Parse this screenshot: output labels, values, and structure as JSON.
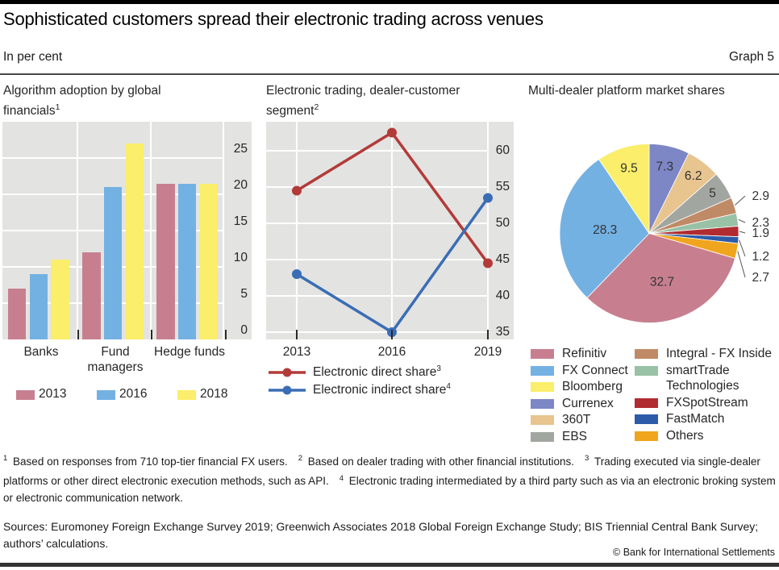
{
  "header": {
    "title": "Sophisticated customers spread their electronic trading across venues",
    "unit_label": "In per cent",
    "graph_label": "Graph 5"
  },
  "chart_data": [
    {
      "id": "algo-adoption",
      "type": "bar",
      "title": "Algorithm adoption by global financials",
      "title_sup": "1",
      "categories": [
        "Banks",
        "Fund managers",
        "Hedge funds"
      ],
      "series": [
        {
          "name": "2013",
          "color": "#c77f90",
          "values": [
            7,
            12,
            21.5
          ]
        },
        {
          "name": "2016",
          "color": "#73b1e3",
          "values": [
            9,
            21,
            21.5
          ]
        },
        {
          "name": "2018",
          "color": "#faee6a",
          "values": [
            11,
            27,
            21.5
          ]
        }
      ],
      "ylim": [
        0,
        30
      ],
      "yticks": [
        0,
        5,
        10,
        15,
        20,
        25
      ],
      "grid": "on",
      "legend_position": "bottom"
    },
    {
      "id": "electronic-trading",
      "type": "line",
      "title": "Electronic trading, dealer-customer segment",
      "title_sup": "2",
      "x": [
        "2013",
        "2016",
        "2019"
      ],
      "series": [
        {
          "name": "Electronic direct share",
          "name_sup": "3",
          "color": "#b23b39",
          "values": [
            54.5,
            62.5,
            44.5
          ]
        },
        {
          "name": "Electronic indirect share",
          "name_sup": "4",
          "color": "#3a6db5",
          "values": [
            43,
            35,
            53.5
          ]
        }
      ],
      "ylim": [
        34,
        64
      ],
      "yticks": [
        35,
        40,
        45,
        50,
        55,
        60
      ],
      "grid": "on",
      "legend_position": "bottom"
    },
    {
      "id": "platform-shares",
      "type": "pie",
      "title": "Multi-dealer platform market shares",
      "slices": [
        {
          "label": "Currenex",
          "value": 7.3,
          "color": "#7d87c6"
        },
        {
          "label": "360T",
          "value": 6.2,
          "color": "#e8c48f"
        },
        {
          "label": "EBS",
          "value": 5,
          "color": "#a2a6a0"
        },
        {
          "label": "Integral - FX Inside",
          "value": 2.9,
          "color": "#c08a66"
        },
        {
          "label": "smartTrade Technologies",
          "value": 2.3,
          "color": "#98c1a6"
        },
        {
          "label": "FXSpotStream",
          "value": 1.9,
          "color": "#b02c30"
        },
        {
          "label": "FastMatch",
          "value": 1.2,
          "color": "#2c5ca8"
        },
        {
          "label": "Others",
          "value": 2.7,
          "color": "#f0a51e"
        },
        {
          "label": "Refinitiv",
          "value": 32.7,
          "color": "#c77f90"
        },
        {
          "label": "FX Connect",
          "value": 28.3,
          "color": "#73b1e3"
        },
        {
          "label": "Bloomberg",
          "value": 9.5,
          "color": "#faee6a"
        }
      ],
      "legend_order": [
        "Refinitiv",
        "FX Connect",
        "Bloomberg",
        "Currenex",
        "360T",
        "EBS",
        "Integral - FX Inside",
        "smartTrade Technologies",
        "FXSpotStream",
        "FastMatch",
        "Others"
      ],
      "legend_position": "bottom"
    }
  ],
  "footnotes": [
    {
      "sup": "1",
      "text": "Based on responses from 710 top-tier financial FX users."
    },
    {
      "sup": "2",
      "text": "Based on dealer trading with other financial institutions."
    },
    {
      "sup": "3",
      "text": "Trading executed via single-dealer platforms or other direct electronic execution methods, such as API."
    },
    {
      "sup": "4",
      "text": "Electronic trading intermediated by a third party such as via an electronic broking system or electronic communication network."
    }
  ],
  "sources": "Sources: Euromoney Foreign Exchange Survey 2019; Greenwich Associates 2018 Global Foreign Exchange Study; BIS Triennial Central Bank Survey; authors’ calculations.",
  "copyright": "© Bank for International Settlements"
}
